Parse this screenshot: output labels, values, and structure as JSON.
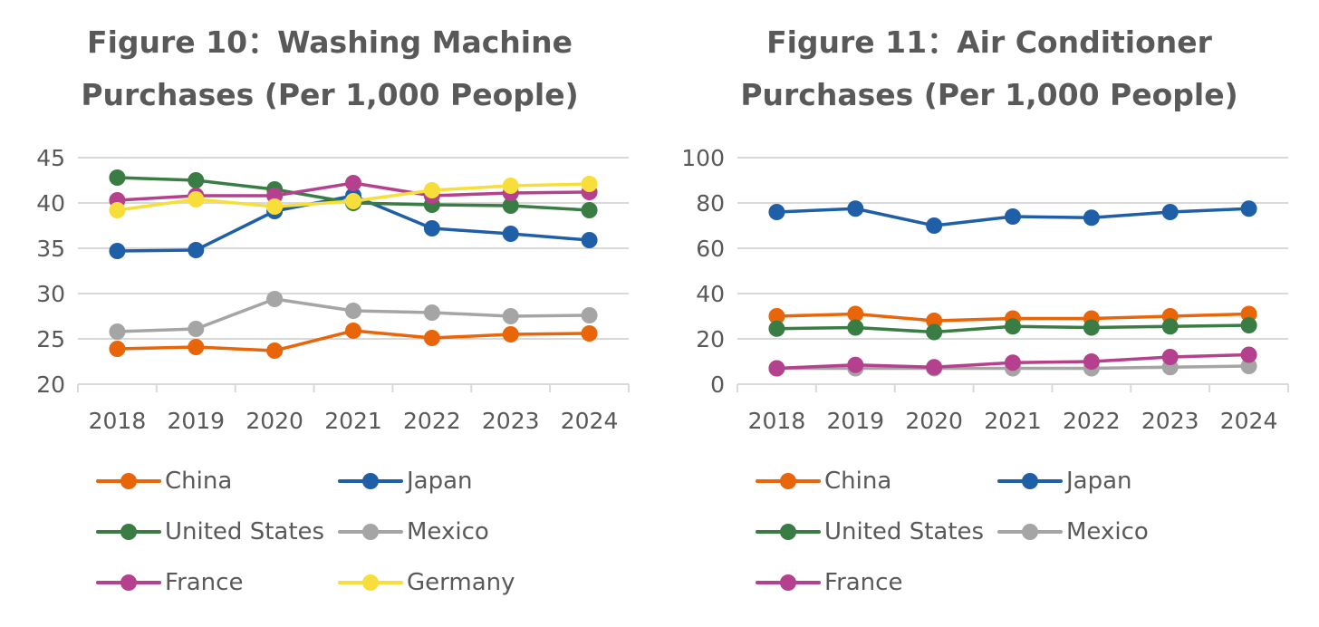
{
  "chart_data": [
    {
      "type": "line",
      "title_line1": "Figure 10：Washing Machine",
      "title_line2": "Purchases (Per 1,000 People)",
      "xlabel": "",
      "ylabel": "",
      "ylim": [
        20,
        45
      ],
      "yticks": [
        20,
        25,
        30,
        35,
        40,
        45
      ],
      "grid": true,
      "legend": "bottom",
      "categories": [
        "2018",
        "2019",
        "2020",
        "2021",
        "2022",
        "2023",
        "2024"
      ],
      "series": [
        {
          "name": "China",
          "color": "#E8650A",
          "values": [
            23.9,
            24.1,
            23.7,
            25.9,
            25.1,
            25.5,
            25.6
          ]
        },
        {
          "name": "Japan",
          "color": "#1F5FA8",
          "values": [
            34.7,
            34.8,
            39.1,
            40.8,
            37.2,
            36.6,
            35.9
          ]
        },
        {
          "name": "United States",
          "color": "#3A7D44",
          "values": [
            42.8,
            42.5,
            41.5,
            40.0,
            39.8,
            39.7,
            39.2
          ]
        },
        {
          "name": "Mexico",
          "color": "#A5A5A5",
          "values": [
            25.8,
            26.1,
            29.4,
            28.1,
            27.9,
            27.5,
            27.6
          ]
        },
        {
          "name": "France",
          "color": "#B5408E",
          "values": [
            40.3,
            40.8,
            40.8,
            42.2,
            40.8,
            41.1,
            41.2
          ]
        },
        {
          "name": "Germany",
          "color": "#F8DE3A",
          "values": [
            39.2,
            40.4,
            39.6,
            40.2,
            41.4,
            41.9,
            42.1
          ]
        }
      ]
    },
    {
      "type": "line",
      "title_line1": "Figure 11：Air Conditioner",
      "title_line2": "Purchases (Per 1,000 People)",
      "xlabel": "",
      "ylabel": "",
      "ylim": [
        0,
        100
      ],
      "yticks": [
        0,
        20,
        40,
        60,
        80,
        100
      ],
      "grid": true,
      "legend": "bottom",
      "categories": [
        "2018",
        "2019",
        "2020",
        "2021",
        "2022",
        "2023",
        "2024"
      ],
      "series": [
        {
          "name": "China",
          "color": "#E8650A",
          "values": [
            30,
            31,
            28,
            29,
            29,
            30,
            31
          ]
        },
        {
          "name": "Japan",
          "color": "#1F5FA8",
          "values": [
            76,
            77.5,
            70,
            74,
            73.5,
            76,
            77.5
          ]
        },
        {
          "name": "United States",
          "color": "#3A7D44",
          "values": [
            24.5,
            25,
            23,
            25.5,
            25,
            25.5,
            26
          ]
        },
        {
          "name": "Mexico",
          "color": "#A5A5A5",
          "values": [
            7,
            7,
            7,
            7,
            7,
            7.5,
            8
          ]
        },
        {
          "name": "France",
          "color": "#B5408E",
          "values": [
            7,
            8.5,
            7.5,
            9.5,
            10,
            12,
            13
          ]
        }
      ]
    }
  ]
}
